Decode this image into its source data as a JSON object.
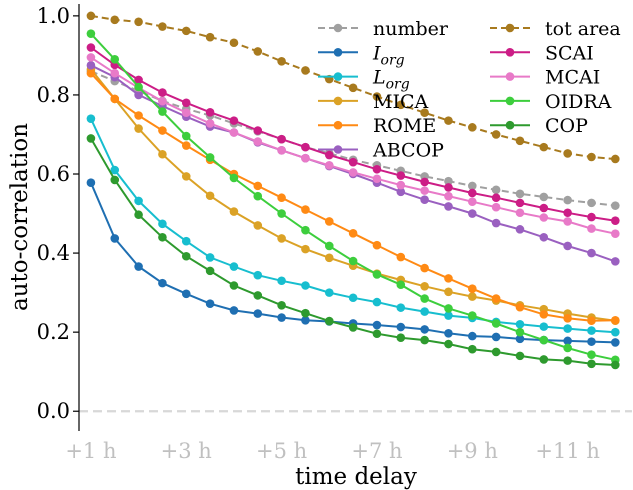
{
  "chart_data": {
    "type": "line",
    "title": "",
    "xlabel": "time delay",
    "ylabel": "auto-correlation",
    "x": [
      1,
      1.5,
      2,
      2.5,
      3,
      3.5,
      4,
      4.5,
      5,
      5.5,
      6,
      6.5,
      7,
      7.5,
      8,
      8.5,
      9,
      9.5,
      10,
      10.5,
      11,
      11.5,
      12
    ],
    "xlim": [
      0.75,
      12.35
    ],
    "ylim": [
      -0.05,
      1.03
    ],
    "x_ticks": [
      1,
      3,
      5,
      7,
      9,
      11
    ],
    "x_tick_labels": [
      "+1 h",
      "+3 h",
      "+5 h",
      "+7 h",
      "+9 h",
      "+11 h"
    ],
    "y_ticks": [
      0.0,
      0.2,
      0.4,
      0.6,
      0.8,
      1.0
    ],
    "y_tick_labels": [
      "0.0",
      "0.2",
      "0.4",
      "0.6",
      "0.8",
      "1.0"
    ],
    "zero_line": true,
    "legend_position": "top-right",
    "legend_columns": 2,
    "series": [
      {
        "name": "number",
        "color": "#a0a0a0",
        "dashed": true,
        "values": [
          0.86,
          0.835,
          0.81,
          0.785,
          0.765,
          0.748,
          0.728,
          0.708,
          0.688,
          0.668,
          0.652,
          0.636,
          0.622,
          0.608,
          0.594,
          0.582,
          0.57,
          0.56,
          0.55,
          0.542,
          0.534,
          0.527,
          0.52
        ]
      },
      {
        "name": "I_org",
        "color": "#1f6fb2",
        "dashed": false,
        "values": [
          0.578,
          0.437,
          0.366,
          0.324,
          0.297,
          0.272,
          0.255,
          0.247,
          0.237,
          0.23,
          0.227,
          0.222,
          0.218,
          0.213,
          0.207,
          0.197,
          0.19,
          0.188,
          0.183,
          0.18,
          0.178,
          0.176,
          0.174
        ]
      },
      {
        "name": "L_org",
        "color": "#17becf",
        "dashed": false,
        "values": [
          0.74,
          0.61,
          0.532,
          0.474,
          0.43,
          0.389,
          0.366,
          0.344,
          0.33,
          0.318,
          0.3,
          0.287,
          0.276,
          0.262,
          0.252,
          0.242,
          0.236,
          0.226,
          0.22,
          0.214,
          0.209,
          0.204,
          0.2
        ]
      },
      {
        "name": "MICA",
        "color": "#dba226",
        "dashed": false,
        "values": [
          0.865,
          0.79,
          0.715,
          0.65,
          0.594,
          0.545,
          0.505,
          0.47,
          0.437,
          0.41,
          0.388,
          0.368,
          0.348,
          0.332,
          0.316,
          0.302,
          0.29,
          0.28,
          0.268,
          0.258,
          0.247,
          0.237,
          0.229
        ]
      },
      {
        "name": "ROME",
        "color": "#ff8a14",
        "dashed": false,
        "values": [
          0.855,
          0.79,
          0.748,
          0.71,
          0.672,
          0.636,
          0.6,
          0.57,
          0.54,
          0.51,
          0.48,
          0.45,
          0.42,
          0.39,
          0.362,
          0.336,
          0.31,
          0.285,
          0.263,
          0.245,
          0.235,
          0.229,
          0.23
        ]
      },
      {
        "name": "ABCOP",
        "color": "#9a60c0",
        "dashed": false,
        "values": [
          0.875,
          0.845,
          0.8,
          0.772,
          0.745,
          0.72,
          0.705,
          0.68,
          0.66,
          0.64,
          0.62,
          0.6,
          0.578,
          0.555,
          0.535,
          0.518,
          0.5,
          0.476,
          0.46,
          0.44,
          0.418,
          0.4,
          0.379
        ]
      },
      {
        "name": "tot area",
        "color": "#a87a1e",
        "dashed": true,
        "values": [
          1.0,
          0.99,
          0.985,
          0.973,
          0.962,
          0.946,
          0.932,
          0.91,
          0.885,
          0.862,
          0.84,
          0.818,
          0.796,
          0.775,
          0.755,
          0.735,
          0.718,
          0.7,
          0.684,
          0.668,
          0.652,
          0.643,
          0.638
        ]
      },
      {
        "name": "SCAI",
        "color": "#cc1d86",
        "dashed": false,
        "values": [
          0.92,
          0.876,
          0.838,
          0.806,
          0.78,
          0.756,
          0.735,
          0.71,
          0.688,
          0.668,
          0.648,
          0.63,
          0.612,
          0.596,
          0.58,
          0.566,
          0.552,
          0.54,
          0.527,
          0.514,
          0.502,
          0.491,
          0.482
        ]
      },
      {
        "name": "MCAI",
        "color": "#e87ac8",
        "dashed": false,
        "values": [
          0.895,
          0.855,
          0.818,
          0.784,
          0.755,
          0.728,
          0.705,
          0.682,
          0.66,
          0.64,
          0.622,
          0.604,
          0.588,
          0.572,
          0.558,
          0.544,
          0.53,
          0.516,
          0.502,
          0.49,
          0.48,
          0.462,
          0.449
        ]
      },
      {
        "name": "OIDRA",
        "color": "#3dce3d",
        "dashed": false,
        "values": [
          0.955,
          0.89,
          0.82,
          0.758,
          0.696,
          0.642,
          0.59,
          0.544,
          0.5,
          0.458,
          0.418,
          0.38,
          0.346,
          0.32,
          0.285,
          0.26,
          0.242,
          0.222,
          0.2,
          0.18,
          0.16,
          0.143,
          0.13
        ]
      },
      {
        "name": "COP",
        "color": "#2e9a2e",
        "dashed": false,
        "values": [
          0.69,
          0.585,
          0.497,
          0.44,
          0.392,
          0.355,
          0.318,
          0.293,
          0.268,
          0.248,
          0.228,
          0.212,
          0.196,
          0.186,
          0.18,
          0.17,
          0.157,
          0.15,
          0.14,
          0.131,
          0.128,
          0.12,
          0.117
        ]
      }
    ]
  }
}
